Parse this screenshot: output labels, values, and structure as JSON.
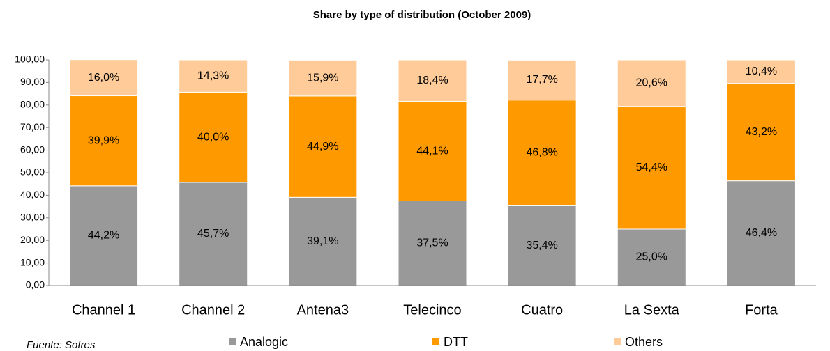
{
  "chart_data": {
    "type": "stacked_bar",
    "title": "Share by type of distribution (October 2009)",
    "categories": [
      "Channel 1",
      "Channel 2",
      "Antena3",
      "Telecinco",
      "Cuatro",
      "La Sexta",
      "Forta"
    ],
    "series": [
      {
        "name": "Analogic",
        "color": "#999999",
        "values": [
          44.2,
          45.7,
          39.1,
          37.5,
          35.4,
          25.0,
          46.4
        ],
        "value_labels": [
          "44,2%",
          "45,7%",
          "39,1%",
          "37,5%",
          "35,4%",
          "25,0%",
          "46,4%"
        ]
      },
      {
        "name": "DTT",
        "color": "#FF9900",
        "values": [
          39.9,
          40.0,
          44.9,
          44.1,
          46.8,
          54.4,
          43.2
        ],
        "value_labels": [
          "39,9%",
          "40,0%",
          "44,9%",
          "44,1%",
          "46,8%",
          "54,4%",
          "43,2%"
        ]
      },
      {
        "name": "Others",
        "color": "#FFCC99",
        "values": [
          16.0,
          14.3,
          15.9,
          18.4,
          17.7,
          20.6,
          10.4
        ],
        "value_labels": [
          "16,0%",
          "14,3%",
          "15,9%",
          "18,4%",
          "17,7%",
          "20,6%",
          "10,4%"
        ]
      }
    ],
    "ylim": [
      0,
      100
    ],
    "yticks": [
      {
        "value": 0,
        "label": "0,00"
      },
      {
        "value": 10,
        "label": "10,00"
      },
      {
        "value": 20,
        "label": "20,00"
      },
      {
        "value": 30,
        "label": "30,00"
      },
      {
        "value": 40,
        "label": "40,00"
      },
      {
        "value": 50,
        "label": "50,00"
      },
      {
        "value": 60,
        "label": "60,00"
      },
      {
        "value": 70,
        "label": "70,00"
      },
      {
        "value": 80,
        "label": "80,00"
      },
      {
        "value": 90,
        "label": "90,00"
      },
      {
        "value": 100,
        "label": "100,00"
      }
    ],
    "grid": false,
    "source": "Fuente: Sofres"
  }
}
